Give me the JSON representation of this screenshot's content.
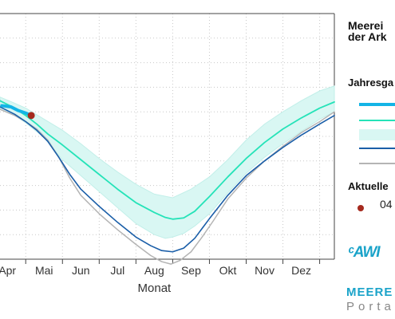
{
  "chart_data": {
    "type": "line",
    "xlabel": "Monat",
    "ylabel": "",
    "x_ticks": [
      "Apr",
      "Mai",
      "Jun",
      "Jul",
      "Aug",
      "Sep",
      "Okt",
      "Nov",
      "Dez"
    ],
    "x_range": [
      3.3,
      12.4
    ],
    "y_range": [
      0,
      10
    ],
    "grid": true,
    "legend_placement": "right",
    "series": [
      {
        "key": "current",
        "color": "#13b4e6",
        "points": [
          [
            3.35,
            6.25
          ],
          [
            3.6,
            6.2
          ],
          [
            3.8,
            6.05
          ],
          [
            4.0,
            5.95
          ],
          [
            4.15,
            5.85
          ]
        ]
      },
      {
        "key": "mean",
        "color": "#25e3b8",
        "points": [
          [
            3.3,
            6.45
          ],
          [
            3.7,
            6.15
          ],
          [
            4.0,
            5.85
          ],
          [
            4.3,
            5.5
          ],
          [
            4.6,
            5.1
          ],
          [
            5.0,
            4.65
          ],
          [
            5.5,
            4.05
          ],
          [
            6.0,
            3.45
          ],
          [
            6.5,
            2.85
          ],
          [
            7.0,
            2.3
          ],
          [
            7.5,
            1.9
          ],
          [
            7.8,
            1.7
          ],
          [
            8.0,
            1.63
          ],
          [
            8.3,
            1.68
          ],
          [
            8.6,
            1.95
          ],
          [
            9.0,
            2.55
          ],
          [
            9.5,
            3.35
          ],
          [
            10.0,
            4.1
          ],
          [
            10.5,
            4.75
          ],
          [
            11.0,
            5.3
          ],
          [
            11.5,
            5.75
          ],
          [
            12.0,
            6.15
          ],
          [
            12.4,
            6.4
          ]
        ]
      },
      {
        "key": "low",
        "color": "#1a5ea8",
        "points": [
          [
            3.3,
            6.2
          ],
          [
            3.7,
            5.9
          ],
          [
            4.0,
            5.6
          ],
          [
            4.3,
            5.25
          ],
          [
            4.6,
            4.8
          ],
          [
            4.9,
            4.15
          ],
          [
            5.2,
            3.45
          ],
          [
            5.5,
            2.85
          ],
          [
            6.0,
            2.15
          ],
          [
            6.5,
            1.5
          ],
          [
            7.0,
            0.9
          ],
          [
            7.4,
            0.55
          ],
          [
            7.7,
            0.35
          ],
          [
            8.0,
            0.3
          ],
          [
            8.3,
            0.45
          ],
          [
            8.6,
            0.85
          ],
          [
            9.0,
            1.65
          ],
          [
            9.5,
            2.6
          ],
          [
            10.0,
            3.4
          ],
          [
            10.5,
            4.0
          ],
          [
            11.0,
            4.55
          ],
          [
            11.5,
            5.05
          ],
          [
            12.0,
            5.5
          ],
          [
            12.4,
            5.85
          ]
        ]
      },
      {
        "key": "record",
        "color": "#b4b4b4",
        "points": [
          [
            3.3,
            6.1
          ],
          [
            3.7,
            5.85
          ],
          [
            4.0,
            5.6
          ],
          [
            4.3,
            5.3
          ],
          [
            4.6,
            4.85
          ],
          [
            4.9,
            4.15
          ],
          [
            5.2,
            3.3
          ],
          [
            5.5,
            2.6
          ],
          [
            6.0,
            1.85
          ],
          [
            6.5,
            1.2
          ],
          [
            7.0,
            0.6
          ],
          [
            7.4,
            0.15
          ],
          [
            7.7,
            -0.1
          ],
          [
            7.95,
            -0.2
          ],
          [
            8.2,
            -0.05
          ],
          [
            8.5,
            0.3
          ],
          [
            8.8,
            0.9
          ],
          [
            9.1,
            1.55
          ],
          [
            9.5,
            2.45
          ],
          [
            10.0,
            3.3
          ],
          [
            10.5,
            4.0
          ],
          [
            11.0,
            4.6
          ],
          [
            11.5,
            5.15
          ],
          [
            12.0,
            5.6
          ],
          [
            12.4,
            6.0
          ]
        ]
      }
    ],
    "band": {
      "key": "range",
      "color": "#d9f7f3",
      "upper": [
        [
          3.3,
          6.6
        ],
        [
          3.7,
          6.35
        ],
        [
          4.0,
          6.15
        ],
        [
          4.5,
          5.7
        ],
        [
          5.0,
          5.25
        ],
        [
          5.5,
          4.7
        ],
        [
          6.0,
          4.1
        ],
        [
          6.5,
          3.55
        ],
        [
          7.0,
          3.05
        ],
        [
          7.5,
          2.65
        ],
        [
          8.0,
          2.5
        ],
        [
          8.5,
          2.85
        ],
        [
          9.0,
          3.35
        ],
        [
          9.5,
          4.05
        ],
        [
          10.0,
          4.85
        ],
        [
          10.5,
          5.5
        ],
        [
          11.0,
          6.0
        ],
        [
          11.5,
          6.45
        ],
        [
          12.0,
          6.85
        ],
        [
          12.4,
          7.05
        ]
      ],
      "lower": [
        [
          3.3,
          6.1
        ],
        [
          3.7,
          5.85
        ],
        [
          4.0,
          5.55
        ],
        [
          4.5,
          4.95
        ],
        [
          5.0,
          4.05
        ],
        [
          5.5,
          3.4
        ],
        [
          6.0,
          2.75
        ],
        [
          6.5,
          2.1
        ],
        [
          7.0,
          1.45
        ],
        [
          7.5,
          1.0
        ],
        [
          7.8,
          0.85
        ],
        [
          8.0,
          0.9
        ],
        [
          8.3,
          1.05
        ],
        [
          8.6,
          1.35
        ],
        [
          9.0,
          1.85
        ],
        [
          9.5,
          2.7
        ],
        [
          10.0,
          3.5
        ],
        [
          10.5,
          4.15
        ],
        [
          11.0,
          4.7
        ],
        [
          11.5,
          5.2
        ],
        [
          12.0,
          5.7
        ],
        [
          12.4,
          6.0
        ]
      ]
    },
    "current_marker": {
      "x": 4.15,
      "y": 5.85,
      "color": "#a52a1e"
    }
  },
  "legend": {
    "title_line1": "Meerei",
    "title_line2": "der Ark",
    "section_yearly": "Jahresga",
    "section_current": "Aktuelle",
    "current_date": "04",
    "marker_color": "#a52a1e"
  },
  "brand": {
    "logo_text": "AWI",
    "portal_name": "MEERE",
    "portal_sub": "Porta"
  }
}
